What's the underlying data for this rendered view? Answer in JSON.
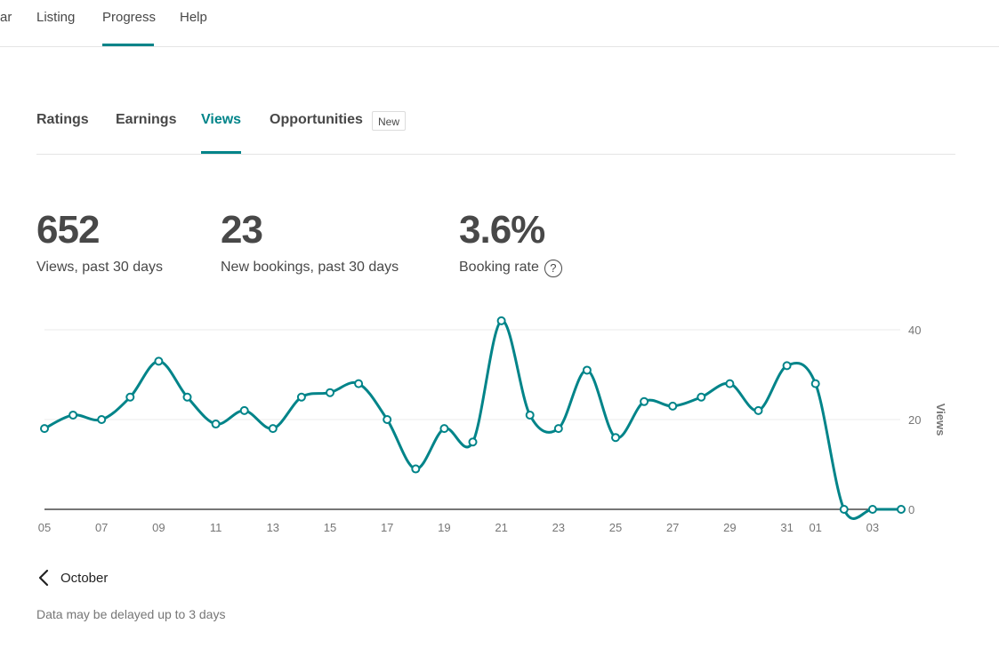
{
  "topnav": {
    "items": [
      "ar",
      "Listing",
      "Progress",
      "Help"
    ],
    "active": "Progress"
  },
  "subtabs": {
    "items": [
      "Ratings",
      "Earnings",
      "Views",
      "Opportunities"
    ],
    "active": "Views",
    "new_badge": "New"
  },
  "stats": [
    {
      "value": "652",
      "label": "Views, past 30 days"
    },
    {
      "value": "23",
      "label": "New bookings, past 30 days"
    },
    {
      "value": "3.6%",
      "label": "Booking rate"
    }
  ],
  "help_icon": {
    "name": "question-circle-icon",
    "glyph": "?"
  },
  "colors": {
    "accent": "#008489",
    "text": "#484848",
    "muted": "#767676",
    "grid": "#ebebeb"
  },
  "chart_data": {
    "type": "line",
    "ylabel": "Views",
    "ylim": [
      0,
      40
    ],
    "yticks": [
      0,
      20,
      40
    ],
    "x": [
      "05",
      "06",
      "07",
      "08",
      "09",
      "10",
      "11",
      "12",
      "13",
      "14",
      "15",
      "16",
      "17",
      "18",
      "19",
      "20",
      "21",
      "22",
      "23",
      "24",
      "25",
      "26",
      "27",
      "28",
      "29",
      "30",
      "31",
      "01",
      "02",
      "03",
      "04"
    ],
    "xtick_labels": [
      "05",
      "07",
      "09",
      "11",
      "13",
      "15",
      "17",
      "19",
      "21",
      "23",
      "25",
      "27",
      "29",
      "31",
      "01",
      "03"
    ],
    "values": [
      18,
      21,
      20,
      25,
      33,
      25,
      19,
      22,
      18,
      25,
      26,
      28,
      20,
      9,
      18,
      15,
      42,
      21,
      18,
      31,
      16,
      24,
      23,
      25,
      28,
      22,
      32,
      28,
      0,
      0,
      0
    ],
    "grid": true,
    "y_axis_position": "right"
  },
  "month_nav": {
    "label": "October",
    "icon": "chevron-left-icon"
  },
  "footnote": "Data may be delayed up to 3 days"
}
